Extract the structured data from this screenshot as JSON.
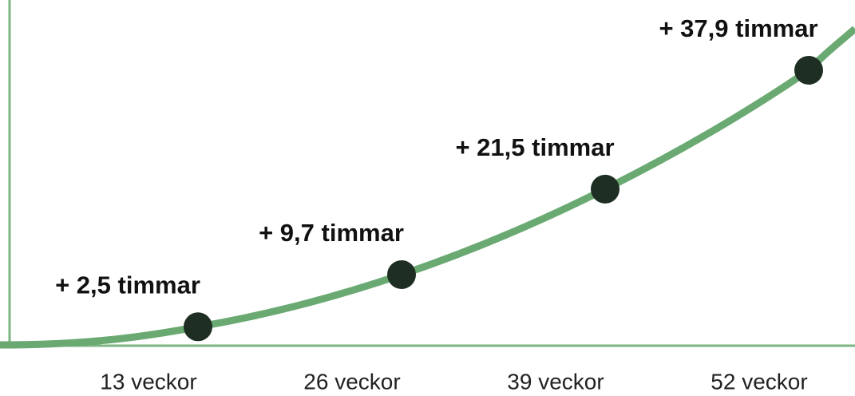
{
  "chart_data": {
    "type": "line",
    "categories": [
      "13 veckor",
      "26 veckor",
      "39 veckor",
      "52 veckor"
    ],
    "values": [
      2.5,
      9.7,
      21.5,
      37.9
    ],
    "value_labels": [
      "+ 2,5 timmar",
      "+ 9,7 timmar",
      "+ 21,5 timmar",
      "+ 37,9 timmar"
    ],
    "color": "#6aaa72",
    "marker_color": "#1e2e22",
    "ylim": [
      0,
      47.6
    ]
  }
}
